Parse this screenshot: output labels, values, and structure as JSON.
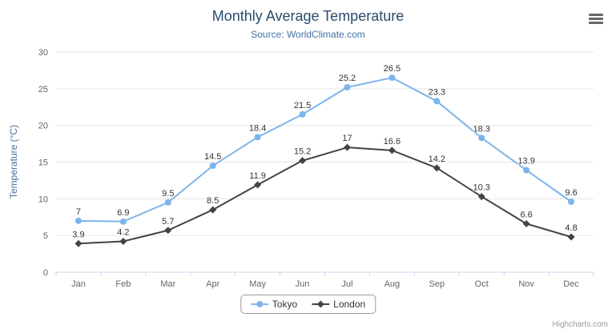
{
  "chart": {
    "title": "Monthly Average Temperature",
    "subtitle": "Source: WorldClimate.com",
    "credits": "Highcharts.com"
  },
  "chart_data": {
    "type": "line",
    "categories": [
      "Jan",
      "Feb",
      "Mar",
      "Apr",
      "May",
      "Jun",
      "Jul",
      "Aug",
      "Sep",
      "Oct",
      "Nov",
      "Dec"
    ],
    "series": [
      {
        "name": "Tokyo",
        "color": "#7cb5ec",
        "marker": "circle",
        "values": [
          7,
          6.9,
          9.5,
          14.5,
          18.4,
          21.5,
          25.2,
          26.5,
          23.3,
          18.3,
          13.9,
          9.6
        ]
      },
      {
        "name": "London",
        "color": "#434348",
        "marker": "diamond",
        "values": [
          3.9,
          4.2,
          5.7,
          8.5,
          11.9,
          15.2,
          17,
          16.6,
          14.2,
          10.3,
          6.6,
          4.8
        ]
      }
    ],
    "title": "Monthly Average Temperature",
    "subtitle": "Source: WorldClimate.com",
    "xlabel": "",
    "ylabel": "Temperature (°C)",
    "ylim": [
      0,
      30
    ],
    "yticks": [
      0,
      5,
      10,
      15,
      20,
      25,
      30
    ],
    "grid": true,
    "legend_position": "bottom",
    "data_labels": true
  },
  "colors": {
    "title": "#274b6d",
    "subtitle": "#4272a8",
    "y_title": "#4a6f9f",
    "grid": "#e6e6e6",
    "axis_line": "#ccd6eb",
    "tick": "#ccd6eb",
    "axis_label": "#666666",
    "data_label": "#333333",
    "legend_border": "#999999",
    "legend_text": "#333333",
    "credits": "#999999",
    "menu_icon": "#666666"
  }
}
